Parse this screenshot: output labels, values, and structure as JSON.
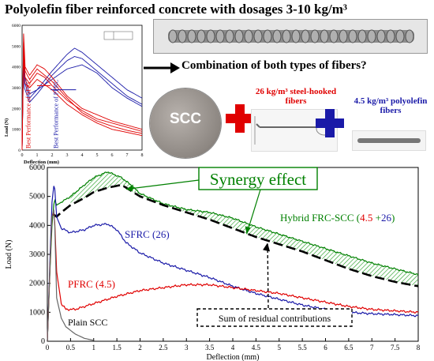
{
  "title": "Polyolefin fiber reinforced concrete with dosages 3-10 kg/m³",
  "question": "Combination of  both types of fibers?",
  "scc_label": "SCC",
  "steel_fiber_label": "26 kg/m³ steel-hooked fibers",
  "poly_fiber_label": "4.5  kg/m³ polyolefin fibers",
  "colors": {
    "red": "#e00000",
    "blue": "#1a1aa8",
    "green": "#008000",
    "black": "#000000",
    "grey": "#666666"
  },
  "small_chart": {
    "xlabel": "Deflection (mm)",
    "ylabel": "Load (N)",
    "xlim": [
      0,
      8
    ],
    "ylim": [
      0,
      6000
    ],
    "xticks": [
      0,
      1,
      2,
      3,
      4,
      5,
      6,
      7,
      8
    ],
    "yticks": [
      0,
      1000,
      2000,
      3000,
      4000,
      5000,
      6000
    ],
    "annotation_sfrc": "Best Performance of SFRC",
    "annotation_pfrc": "Best Performance of PFRC"
  },
  "chart_data": {
    "type": "line",
    "xlabel": "Deflection (mm)",
    "ylabel": "Load (N)",
    "xlim": [
      0,
      8
    ],
    "ylim": [
      0,
      6000
    ],
    "xticks": [
      0,
      0.5,
      1,
      1.5,
      2,
      2.5,
      3,
      3.5,
      4,
      4.5,
      5,
      5.5,
      6,
      6.5,
      7,
      7.5,
      8
    ],
    "yticks": [
      0,
      1000,
      2000,
      3000,
      4000,
      5000,
      6000
    ],
    "series": [
      {
        "name": "Hybrid FRC-SCC (4.5 +26)",
        "color": "#008000",
        "x": [
          0,
          0.05,
          0.1,
          0.15,
          0.2,
          0.3,
          0.5,
          0.8,
          1.0,
          1.3,
          1.6,
          1.8,
          2.0,
          2.5,
          3.0,
          3.5,
          4.0,
          4.5,
          5.0,
          5.5,
          6.0,
          6.5,
          7.0,
          7.5,
          8.0
        ],
        "y": [
          0,
          2200,
          4000,
          4900,
          4700,
          4800,
          5000,
          5400,
          5650,
          5850,
          5650,
          5400,
          5100,
          4750,
          4550,
          4450,
          4250,
          3950,
          3700,
          3450,
          3200,
          2950,
          2700,
          2500,
          2300
        ]
      },
      {
        "name": "Sum of residual contributions",
        "color": "#000000",
        "x": [
          0.12,
          0.2,
          0.3,
          0.5,
          0.8,
          1.0,
          1.3,
          1.6,
          1.8,
          2.0,
          2.5,
          3.0,
          3.5,
          4.0,
          4.5,
          5.0,
          5.5,
          6.0,
          6.5,
          7.0,
          7.5,
          8.0
        ],
        "y": [
          4400,
          4300,
          4450,
          4700,
          4950,
          5150,
          5300,
          5400,
          5200,
          5000,
          4700,
          4450,
          4200,
          3900,
          3600,
          3350,
          3100,
          2800,
          2500,
          2250,
          2050,
          1900
        ]
      },
      {
        "name": "SFRC (26)",
        "color": "#1a1aa8",
        "x": [
          0,
          0.05,
          0.1,
          0.15,
          0.2,
          0.3,
          0.5,
          0.8,
          1.0,
          1.3,
          1.5,
          1.7,
          2.0,
          2.5,
          3.0,
          3.5,
          4.0,
          4.5,
          5.0,
          5.5,
          6.0,
          6.5,
          7.0,
          7.5,
          8.0
        ],
        "y": [
          0,
          2500,
          4800,
          5500,
          4300,
          3900,
          3750,
          3850,
          4000,
          4050,
          3850,
          3400,
          3050,
          2700,
          2450,
          2200,
          1900,
          1650,
          1450,
          1250,
          1100,
          1000,
          950,
          920,
          880
        ]
      },
      {
        "name": "PFRC (4.5)",
        "color": "#e00000",
        "x": [
          0,
          0.05,
          0.1,
          0.15,
          0.2,
          0.3,
          0.4,
          0.6,
          0.8,
          1.0,
          1.5,
          2.0,
          2.5,
          3.0,
          3.5,
          4.0,
          4.5,
          5.0,
          5.5,
          6.0,
          6.5,
          7.0,
          7.5,
          8.0
        ],
        "y": [
          0,
          2300,
          4300,
          4500,
          2400,
          1300,
          1100,
          1100,
          1200,
          1300,
          1550,
          1750,
          1850,
          1950,
          1950,
          1850,
          1750,
          1650,
          1500,
          1350,
          1200,
          1100,
          1050,
          1000
        ]
      },
      {
        "name": "Plain SCC",
        "color": "#666666",
        "x": [
          0,
          0.05,
          0.1,
          0.15,
          0.2,
          0.3,
          0.4,
          0.6,
          0.8,
          1.0
        ],
        "y": [
          0,
          2300,
          4300,
          4600,
          1500,
          800,
          500,
          250,
          100,
          30
        ]
      }
    ],
    "annotations": {
      "synergy": "Synergy effect",
      "hybrid_prefix": "Hybrid FRC-SCC (",
      "hybrid_p1": "4.5",
      "hybrid_p2": " +",
      "hybrid_p3": "26",
      "hybrid_suffix": ")",
      "sfrc": "SFRC (26)",
      "pfrc": "PFRC (4.5)",
      "plain": "Plain SCC",
      "sum": "Sum of residual contributions"
    }
  }
}
